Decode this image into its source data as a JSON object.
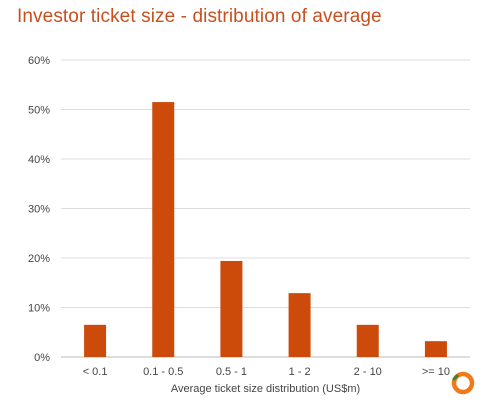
{
  "chart_data": {
    "type": "bar",
    "title": "Investor ticket size - distribution of average",
    "xlabel": "Average ticket size distribution (US$m)",
    "ylabel": "",
    "categories": [
      "< 0.1",
      "0.1 - 0.5",
      "0.5 - 1",
      "1 - 2",
      "2 - 10",
      ">= 10"
    ],
    "values": [
      6.5,
      51.5,
      19.4,
      12.9,
      6.5,
      3.2
    ],
    "ylim": [
      0,
      60
    ],
    "yticks": [
      0,
      10,
      20,
      30,
      40,
      50,
      60
    ],
    "ytick_labels": [
      "0%",
      "10%",
      "20%",
      "30%",
      "40%",
      "50%",
      "60%"
    ],
    "grid": true,
    "bar_color": "#cc4a0a",
    "grid_color": "#dddddd"
  },
  "logo": {
    "icon": "ring-logo-icon",
    "color": "#f07a1a",
    "accent_color": "#2e8b3a"
  }
}
